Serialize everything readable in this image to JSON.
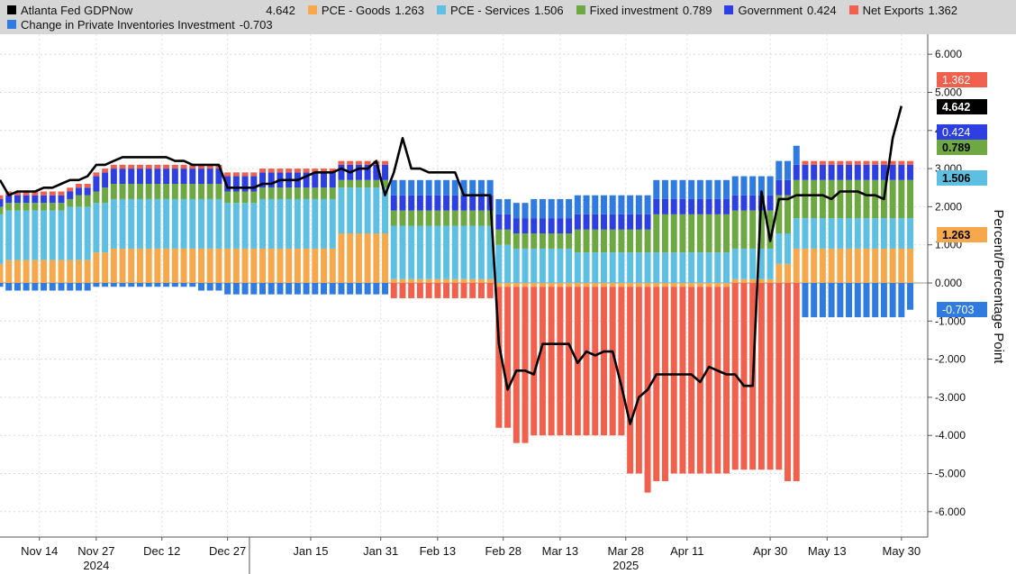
{
  "colors": {
    "pce_goods": "#f5a94c",
    "pce_services": "#5dc0e2",
    "fixed_investment": "#6ea843",
    "government": "#2d3fe0",
    "net_exports": "#f0604d",
    "inventories": "#2f7be0",
    "gdpnow": "#000000"
  },
  "chart_data": {
    "type": "bar",
    "stacked": true,
    "title": "",
    "xlabel": "",
    "ylabel": "Percent/Percentage Point",
    "ylim": [
      -6.5,
      6.5
    ],
    "yticks": [
      "6.000",
      "5.000",
      "4.000",
      "3.000",
      "2.000",
      "1.000",
      "0.000",
      "-1.000",
      "-2.000",
      "-3.000",
      "-4.000",
      "-5.000",
      "-6.000"
    ],
    "grid": true,
    "legend_position": "top",
    "x_date_range": [
      "2024-11-05",
      "2025-06-05"
    ],
    "x_tick_labels": [
      {
        "date": "2024-11-14",
        "label": "Nov 14"
      },
      {
        "date": "2024-11-27",
        "label": "Nov 27"
      },
      {
        "date": "2024-12-12",
        "label": "Dec 12"
      },
      {
        "date": "2024-12-27",
        "label": "Dec 27"
      },
      {
        "date": "2025-01-15",
        "label": "Jan 15"
      },
      {
        "date": "2025-01-31",
        "label": "Jan 31"
      },
      {
        "date": "2025-02-13",
        "label": "Feb 13"
      },
      {
        "date": "2025-02-28",
        "label": "Feb 28"
      },
      {
        "date": "2025-03-13",
        "label": "Mar 13"
      },
      {
        "date": "2025-03-28",
        "label": "Mar 28"
      },
      {
        "date": "2025-04-11",
        "label": "Apr 11"
      },
      {
        "date": "2025-04-30",
        "label": "Apr 30"
      },
      {
        "date": "2025-05-13",
        "label": "May 13"
      },
      {
        "date": "2025-05-30",
        "label": "May 30"
      }
    ],
    "year_labels": [
      {
        "date": "2024-11-27",
        "label": "2024"
      },
      {
        "date": "2025-03-28",
        "label": "2025"
      }
    ],
    "year_divider": "2025-01-01",
    "legend": [
      {
        "key": "gdpnow",
        "name": "Atlanta Fed GDPNow",
        "last": "4.642"
      },
      {
        "key": "pce_goods",
        "name": "PCE - Goods",
        "last": "1.263"
      },
      {
        "key": "pce_services",
        "name": "PCE - Services",
        "last": "1.506"
      },
      {
        "key": "fixed_investment",
        "name": "Fixed investment",
        "last": "0.789"
      },
      {
        "key": "government",
        "name": "Government",
        "last": "0.424"
      },
      {
        "key": "net_exports",
        "name": "Net Exports",
        "last": "1.362"
      },
      {
        "key": "inventories",
        "name": "Change in Private Inventories Investment",
        "last": "-0.703"
      }
    ],
    "last_value_tags": [
      {
        "key": "net_exports",
        "value": "1.362"
      },
      {
        "key": "gdpnow",
        "value": "4.642"
      },
      {
        "key": "government",
        "value": "0.424"
      },
      {
        "key": "fixed_investment",
        "value": "0.789"
      },
      {
        "key": "pce_services",
        "value": "1.506"
      },
      {
        "key": "pce_goods",
        "value": "1.263"
      },
      {
        "key": "inventories",
        "value": "-0.703"
      }
    ],
    "series_order": [
      "pce_goods",
      "pce_services",
      "fixed_investment",
      "government",
      "net_exports",
      "inventories"
    ],
    "dates": [
      "2024-11-05",
      "2024-11-07",
      "2024-11-09",
      "2024-11-11",
      "2024-11-13",
      "2024-11-15",
      "2024-11-17",
      "2024-11-19",
      "2024-11-21",
      "2024-11-23",
      "2024-11-25",
      "2024-11-27",
      "2024-11-29",
      "2024-12-01",
      "2024-12-03",
      "2024-12-05",
      "2024-12-07",
      "2024-12-09",
      "2024-12-11",
      "2024-12-13",
      "2024-12-15",
      "2024-12-17",
      "2024-12-19",
      "2024-12-21",
      "2024-12-23",
      "2024-12-25",
      "2024-12-27",
      "2024-12-29",
      "2024-12-31",
      "2025-01-02",
      "2025-01-04",
      "2025-01-06",
      "2025-01-08",
      "2025-01-10",
      "2025-01-12",
      "2025-01-14",
      "2025-01-16",
      "2025-01-18",
      "2025-01-20",
      "2025-01-22",
      "2025-01-24",
      "2025-01-26",
      "2025-01-28",
      "2025-01-30",
      "2025-02-01",
      "2025-02-03",
      "2025-02-05",
      "2025-02-07",
      "2025-02-09",
      "2025-02-11",
      "2025-02-13",
      "2025-02-15",
      "2025-02-17",
      "2025-02-19",
      "2025-02-21",
      "2025-02-23",
      "2025-02-25",
      "2025-02-27",
      "2025-03-01",
      "2025-03-03",
      "2025-03-05",
      "2025-03-07",
      "2025-03-09",
      "2025-03-11",
      "2025-03-13",
      "2025-03-15",
      "2025-03-17",
      "2025-03-19",
      "2025-03-21",
      "2025-03-23",
      "2025-03-25",
      "2025-03-27",
      "2025-03-29",
      "2025-03-31",
      "2025-04-02",
      "2025-04-04",
      "2025-04-06",
      "2025-04-08",
      "2025-04-10",
      "2025-04-12",
      "2025-04-14",
      "2025-04-16",
      "2025-04-18",
      "2025-04-20",
      "2025-04-22",
      "2025-04-24",
      "2025-04-26",
      "2025-04-28",
      "2025-04-30",
      "2025-05-02",
      "2025-05-04",
      "2025-05-06",
      "2025-05-08",
      "2025-05-10",
      "2025-05-12",
      "2025-05-14",
      "2025-05-16",
      "2025-05-18",
      "2025-05-20",
      "2025-05-22",
      "2025-05-24",
      "2025-05-26",
      "2025-05-28",
      "2025-05-30",
      "2025-06-01"
    ],
    "series": {
      "pce_goods": [
        0.5,
        0.6,
        0.6,
        0.6,
        0.6,
        0.6,
        0.6,
        0.6,
        0.6,
        0.6,
        0.6,
        0.8,
        0.8,
        0.9,
        0.9,
        0.9,
        0.9,
        0.9,
        0.9,
        0.9,
        0.9,
        0.9,
        0.9,
        0.9,
        0.9,
        0.9,
        0.9,
        0.9,
        0.9,
        0.9,
        0.9,
        0.9,
        0.9,
        0.9,
        0.9,
        0.9,
        0.9,
        0.9,
        0.9,
        1.3,
        1.3,
        1.3,
        1.3,
        1.3,
        1.3,
        0.1,
        0.1,
        0.1,
        0.1,
        0.1,
        0.1,
        0.1,
        0.1,
        0.1,
        0.1,
        0.1,
        0.1,
        -0.1,
        -0.1,
        -0.1,
        -0.1,
        -0.1,
        -0.1,
        -0.1,
        -0.1,
        -0.1,
        -0.1,
        -0.1,
        -0.1,
        -0.1,
        -0.1,
        -0.1,
        -0.1,
        -0.1,
        -0.1,
        -0.1,
        -0.1,
        -0.1,
        -0.1,
        -0.1,
        -0.1,
        -0.1,
        -0.1,
        -0.1,
        0.1,
        0.1,
        0.1,
        0.1,
        0.1,
        0.5,
        0.5,
        0.9,
        0.9,
        0.9,
        0.9,
        0.9,
        0.9,
        0.9,
        0.9,
        0.9,
        0.9,
        0.9,
        0.9,
        0.9,
        0.9,
        1.263
      ],
      "pce_services": [
        1.3,
        1.3,
        1.3,
        1.3,
        1.3,
        1.3,
        1.3,
        1.3,
        1.4,
        1.4,
        1.4,
        1.3,
        1.3,
        1.3,
        1.3,
        1.3,
        1.3,
        1.3,
        1.3,
        1.3,
        1.3,
        1.3,
        1.3,
        1.3,
        1.3,
        1.3,
        1.2,
        1.2,
        1.2,
        1.2,
        1.3,
        1.3,
        1.3,
        1.3,
        1.3,
        1.3,
        1.3,
        1.3,
        1.3,
        1.2,
        1.2,
        1.2,
        1.2,
        1.2,
        1.2,
        1.4,
        1.4,
        1.4,
        1.4,
        1.4,
        1.4,
        1.4,
        1.4,
        1.4,
        1.4,
        1.4,
        1.4,
        1.0,
        1.0,
        0.9,
        0.9,
        0.9,
        0.9,
        0.9,
        0.9,
        0.9,
        0.8,
        0.8,
        0.8,
        0.8,
        0.8,
        0.8,
        0.8,
        0.8,
        0.8,
        0.8,
        0.8,
        0.8,
        0.8,
        0.8,
        0.8,
        0.8,
        0.8,
        0.8,
        0.8,
        0.8,
        0.8,
        0.8,
        0.8,
        0.8,
        0.8,
        0.8,
        0.8,
        0.8,
        0.8,
        0.8,
        0.8,
        0.8,
        0.8,
        0.8,
        0.8,
        0.8,
        0.8,
        0.8,
        0.8,
        1.506
      ],
      "fixed_investment": [
        0.2,
        0.2,
        0.2,
        0.2,
        0.2,
        0.2,
        0.2,
        0.2,
        0.2,
        0.3,
        0.3,
        0.3,
        0.4,
        0.4,
        0.4,
        0.4,
        0.4,
        0.4,
        0.4,
        0.4,
        0.4,
        0.4,
        0.4,
        0.4,
        0.4,
        0.4,
        0.3,
        0.3,
        0.3,
        0.3,
        0.3,
        0.3,
        0.3,
        0.3,
        0.3,
        0.3,
        0.3,
        0.3,
        0.3,
        0.2,
        0.2,
        0.2,
        0.2,
        0.2,
        0.2,
        0.4,
        0.4,
        0.4,
        0.4,
        0.4,
        0.4,
        0.4,
        0.4,
        0.4,
        0.4,
        0.4,
        0.4,
        0.4,
        0.4,
        0.4,
        0.4,
        0.4,
        0.4,
        0.4,
        0.4,
        0.4,
        0.6,
        0.6,
        0.6,
        0.6,
        0.6,
        0.6,
        0.6,
        0.6,
        0.6,
        1.0,
        1.0,
        1.0,
        1.0,
        1.0,
        1.0,
        1.0,
        1.0,
        1.0,
        1.0,
        1.0,
        1.0,
        1.0,
        1.0,
        1.0,
        1.0,
        1.0,
        1.0,
        1.0,
        1.0,
        1.0,
        1.0,
        1.0,
        1.0,
        1.0,
        1.0,
        1.0,
        1.0,
        1.0,
        1.0,
        0.789
      ],
      "government": [
        0.2,
        0.2,
        0.2,
        0.2,
        0.2,
        0.2,
        0.2,
        0.2,
        0.2,
        0.2,
        0.2,
        0.4,
        0.4,
        0.4,
        0.4,
        0.4,
        0.4,
        0.4,
        0.4,
        0.4,
        0.4,
        0.4,
        0.4,
        0.4,
        0.4,
        0.4,
        0.4,
        0.4,
        0.4,
        0.4,
        0.4,
        0.4,
        0.4,
        0.4,
        0.4,
        0.4,
        0.4,
        0.4,
        0.4,
        0.4,
        0.4,
        0.4,
        0.4,
        0.4,
        0.4,
        0.4,
        0.4,
        0.4,
        0.4,
        0.4,
        0.4,
        0.4,
        0.4,
        0.4,
        0.4,
        0.4,
        0.4,
        0.4,
        0.4,
        0.4,
        0.4,
        0.4,
        0.4,
        0.4,
        0.4,
        0.4,
        0.4,
        0.4,
        0.4,
        0.4,
        0.4,
        0.4,
        0.4,
        0.4,
        0.4,
        0.4,
        0.4,
        0.4,
        0.4,
        0.4,
        0.4,
        0.4,
        0.4,
        0.4,
        0.4,
        0.4,
        0.4,
        0.4,
        0.4,
        0.4,
        0.4,
        0.4,
        0.4,
        0.4,
        0.4,
        0.4,
        0.4,
        0.4,
        0.4,
        0.4,
        0.4,
        0.4,
        0.4,
        0.4,
        0.4,
        0.424
      ],
      "net_exports": [
        0.1,
        0.1,
        0.1,
        0.1,
        0.1,
        0.1,
        0.1,
        0.1,
        0.1,
        0.1,
        0.1,
        0.1,
        0.1,
        0.1,
        0.1,
        0.1,
        0.1,
        0.1,
        0.1,
        0.1,
        0.1,
        0.1,
        0.1,
        0.1,
        0.1,
        0.1,
        0.1,
        0.1,
        0.1,
        0.1,
        0.1,
        0.1,
        0.1,
        0.1,
        0.1,
        0.1,
        0.1,
        0.1,
        0.1,
        0.1,
        0.1,
        0.1,
        0.1,
        0.1,
        0.1,
        -0.4,
        -0.4,
        -0.4,
        -0.4,
        -0.4,
        -0.4,
        -0.4,
        -0.4,
        -0.4,
        -0.4,
        -0.4,
        -0.4,
        -3.7,
        -3.7,
        -4.1,
        -4.1,
        -3.9,
        -3.9,
        -3.9,
        -3.9,
        -3.9,
        -3.9,
        -3.9,
        -3.9,
        -3.9,
        -3.9,
        -3.9,
        -4.9,
        -4.9,
        -5.4,
        -5.1,
        -5.1,
        -4.9,
        -4.9,
        -4.9,
        -4.9,
        -4.9,
        -4.9,
        -4.9,
        -4.9,
        -4.9,
        -4.9,
        -4.9,
        -4.9,
        -4.9,
        -5.2,
        -5.2,
        0.1,
        0.1,
        0.1,
        0.1,
        0.1,
        0.1,
        0.1,
        0.1,
        0.1,
        0.1,
        0.1,
        0.1,
        0.1,
        1.362
      ],
      "inventories": [
        -0.1,
        -0.2,
        -0.2,
        -0.2,
        -0.2,
        -0.2,
        -0.2,
        -0.2,
        -0.2,
        -0.2,
        -0.2,
        -0.1,
        -0.1,
        -0.1,
        -0.1,
        -0.1,
        -0.1,
        -0.1,
        -0.1,
        -0.1,
        -0.1,
        -0.1,
        -0.1,
        -0.2,
        -0.2,
        -0.2,
        -0.3,
        -0.3,
        -0.3,
        -0.3,
        -0.3,
        -0.3,
        -0.3,
        -0.3,
        -0.3,
        -0.3,
        -0.3,
        -0.3,
        -0.3,
        -0.3,
        -0.3,
        -0.3,
        -0.3,
        -0.3,
        -0.3,
        0.4,
        0.4,
        0.4,
        0.4,
        0.4,
        0.4,
        0.4,
        0.4,
        0.4,
        0.4,
        0.4,
        0.4,
        0.4,
        0.4,
        0.4,
        0.4,
        0.5,
        0.5,
        0.5,
        0.5,
        0.5,
        0.5,
        0.5,
        0.5,
        0.5,
        0.5,
        0.5,
        0.5,
        0.5,
        0.5,
        0.5,
        0.5,
        0.5,
        0.5,
        0.5,
        0.5,
        0.5,
        0.5,
        0.5,
        0.5,
        0.5,
        0.5,
        0.5,
        0.5,
        0.5,
        0.5,
        0.5,
        -0.9,
        -0.9,
        -0.9,
        -0.9,
        -0.9,
        -0.9,
        -0.9,
        -0.9,
        -0.9,
        -0.9,
        -0.9,
        -0.9,
        -0.703
      ],
      "gdpnow": [
        2.7,
        2.3,
        2.4,
        2.4,
        2.4,
        2.5,
        2.5,
        2.6,
        2.7,
        2.7,
        2.8,
        3.1,
        3.1,
        3.2,
        3.3,
        3.3,
        3.3,
        3.3,
        3.3,
        3.3,
        3.2,
        3.2,
        3.1,
        3.1,
        3.1,
        3.1,
        2.5,
        2.5,
        2.5,
        2.5,
        2.6,
        2.6,
        2.7,
        2.7,
        2.7,
        2.8,
        2.9,
        2.9,
        2.9,
        3.0,
        2.9,
        3.0,
        3.0,
        3.2,
        2.3,
        2.9,
        3.8,
        3.0,
        3.0,
        2.9,
        2.9,
        2.9,
        2.9,
        2.3,
        2.3,
        2.3,
        2.3,
        -1.6,
        -2.8,
        -2.3,
        -2.3,
        -2.4,
        -1.6,
        -1.6,
        -1.6,
        -1.6,
        -2.1,
        -1.8,
        -1.9,
        -1.8,
        -1.8,
        -2.7,
        -3.7,
        -3.0,
        -2.8,
        -2.4,
        -2.4,
        -2.4,
        -2.4,
        -2.4,
        -2.6,
        -2.2,
        -2.3,
        -2.4,
        -2.4,
        -2.7,
        -2.7,
        2.4,
        1.1,
        2.2,
        2.2,
        2.3,
        2.3,
        2.3,
        2.3,
        2.2,
        2.4,
        2.4,
        2.4,
        2.3,
        2.3,
        2.2,
        3.8,
        4.642
      ]
    }
  }
}
